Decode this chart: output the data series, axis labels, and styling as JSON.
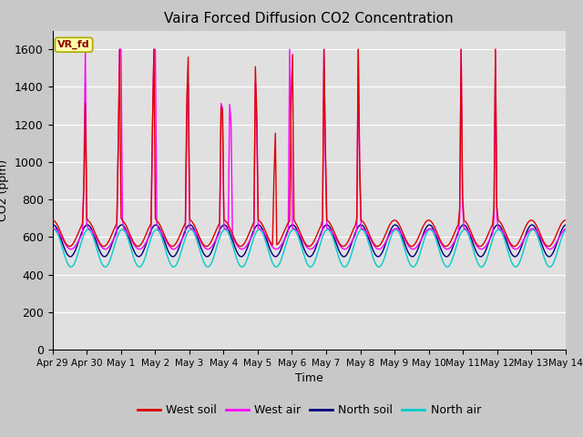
{
  "title": "Vaira Forced Diffusion CO2 Concentration",
  "xlabel": "Time",
  "ylabel": "CO2 (ppm)",
  "ylim": [
    0,
    1700
  ],
  "yticks": [
    0,
    200,
    400,
    600,
    800,
    1000,
    1200,
    1400,
    1600
  ],
  "fig_facecolor": "#c8c8c8",
  "ax_facecolor": "#e0e0e0",
  "grid_color": "white",
  "legend_label": "VR_fd",
  "series": {
    "west_soil": {
      "color": "#dd0000",
      "label": "West soil"
    },
    "west_air": {
      "color": "#ff00ff",
      "label": "West air"
    },
    "north_soil": {
      "color": "#000080",
      "label": "North soil"
    },
    "north_air": {
      "color": "#00cccc",
      "label": "North air"
    }
  },
  "xtick_labels": [
    "Apr 29",
    "Apr 30",
    "May 1",
    "May 2",
    "May 3",
    "May 4",
    "May 5",
    "May 6",
    "May 7",
    "May 8",
    "May 9",
    "May 10",
    "May 11",
    "May 12",
    "May 13",
    "May 14"
  ]
}
